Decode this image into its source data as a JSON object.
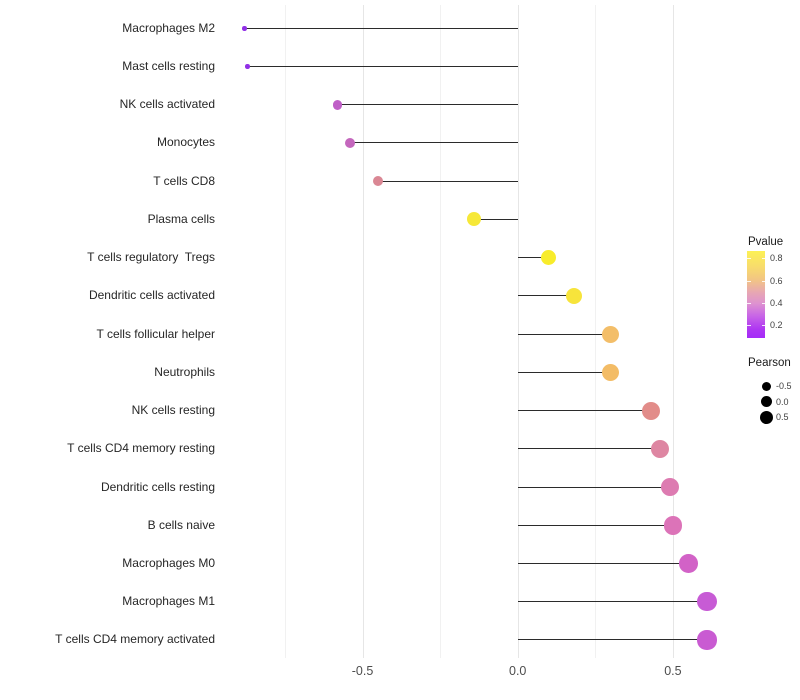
{
  "chart_data": {
    "type": "lollipop",
    "title": "",
    "xlabel": "",
    "ylabel": "",
    "x_axis": {
      "tick_values": [
        -0.5,
        0.0,
        0.5
      ],
      "tick_labels": [
        "-0.5",
        "0.0",
        "0.5"
      ],
      "minor_gridlines": [
        -0.75,
        -0.25,
        0.25
      ],
      "range": [
        -0.955,
        0.685
      ]
    },
    "baseline": 0,
    "grid": "on",
    "points": [
      {
        "label": "Macrophages M2",
        "pearson": -0.88,
        "pvalue": 0.09,
        "color": "#9130e6",
        "size": 4.5
      },
      {
        "label": "Mast cells resting",
        "pearson": -0.87,
        "pvalue": 0.1,
        "color": "#9130e6",
        "size": 4.5
      },
      {
        "label": "NK cells activated",
        "pearson": -0.58,
        "pvalue": 0.22,
        "color": "#bf5fc7",
        "size": 9.5
      },
      {
        "label": "Monocytes",
        "pearson": -0.54,
        "pvalue": 0.25,
        "color": "#c467bd",
        "size": 10
      },
      {
        "label": "T cells CD8",
        "pearson": -0.45,
        "pvalue": 0.45,
        "color": "#da8794",
        "size": 10.5
      },
      {
        "label": "Plasma cells",
        "pearson": -0.14,
        "pvalue": 0.84,
        "color": "#f6e838",
        "size": 14
      },
      {
        "label": "T cells regulatory  Tregs",
        "pearson": 0.1,
        "pvalue": 0.86,
        "color": "#f8ec2b",
        "size": 15.5
      },
      {
        "label": "Dendritic cells activated",
        "pearson": 0.18,
        "pvalue": 0.82,
        "color": "#f7e43b",
        "size": 16
      },
      {
        "label": "T cells follicular helper",
        "pearson": 0.3,
        "pvalue": 0.64,
        "color": "#f3be69",
        "size": 17
      },
      {
        "label": "Neutrophils",
        "pearson": 0.3,
        "pvalue": 0.62,
        "color": "#f3bc66",
        "size": 17
      },
      {
        "label": "NK cells resting",
        "pearson": 0.43,
        "pvalue": 0.52,
        "color": "#e28c89",
        "size": 18
      },
      {
        "label": "T cells CD4 memory resting",
        "pearson": 0.46,
        "pvalue": 0.47,
        "color": "#de86a2",
        "size": 18
      },
      {
        "label": "Dendritic cells resting",
        "pearson": 0.49,
        "pvalue": 0.42,
        "color": "#dd7bb1",
        "size": 18.4
      },
      {
        "label": "B cells naive",
        "pearson": 0.5,
        "pvalue": 0.38,
        "color": "#dc73b8",
        "size": 18.5
      },
      {
        "label": "Macrophages M0",
        "pearson": 0.55,
        "pvalue": 0.31,
        "color": "#d262c7",
        "size": 18.8
      },
      {
        "label": "Macrophages M1",
        "pearson": 0.61,
        "pvalue": 0.26,
        "color": "#c75bd5",
        "size": 19.2
      },
      {
        "label": "T cells CD4 memory activated",
        "pearson": 0.61,
        "pvalue": 0.26,
        "color": "#c95bd2",
        "size": 19.2
      }
    ],
    "legends": {
      "pvalue": {
        "title": "Pvalue",
        "tick_labels": [
          "0.8",
          "0.6",
          "0.4",
          "0.2"
        ],
        "tick_values": [
          0.8,
          0.6,
          0.4,
          0.2
        ],
        "bar_top_value": 0.87,
        "bar_bottom_value": 0.08,
        "gradient_stops_top_to_bottom": [
          "#fcf155 0%",
          "#f8dc6c 18%",
          "#f2c584 33%",
          "#e7a6b4 48%",
          "#de93cf 60%",
          "#c967e6 74%",
          "#ae36f2 90%",
          "#a52bf8 100%"
        ]
      },
      "pearson": {
        "title": "Pearson",
        "dot_color": "#000000",
        "entries": [
          {
            "label": "-0.5",
            "size": 9
          },
          {
            "label": "0.0",
            "size": 11.5
          },
          {
            "label": "0.5",
            "size": 13.5
          }
        ]
      }
    }
  },
  "style": {
    "background": "#ffffff",
    "stem_color": "#2b2b2b",
    "major_grid_color": "#e6e6e6",
    "minor_grid_color": "#f1f1f1",
    "category_label_color": "#262626",
    "axis_tick_label_color": "#4d4d4d"
  }
}
